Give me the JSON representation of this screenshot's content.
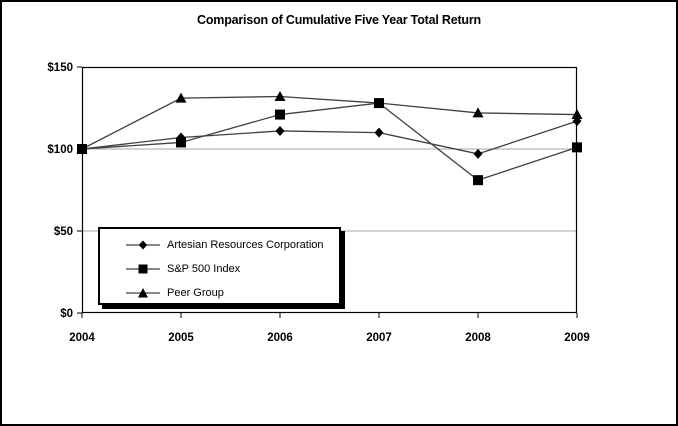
{
  "figure": {
    "background": "#ffffff",
    "border_color": "#000000"
  },
  "chart_data": {
    "type": "line",
    "title": "Comparison of Cumulative Five Year Total Return",
    "categories": [
      "2004",
      "2005",
      "2006",
      "2007",
      "2008",
      "2009"
    ],
    "series": [
      {
        "name": "Artesian Resources Corporation",
        "marker": "diamond",
        "values": [
          100,
          107,
          111,
          110,
          97,
          117
        ]
      },
      {
        "name": "S&P 500 Index",
        "marker": "square",
        "values": [
          100,
          104,
          121,
          128,
          81,
          101
        ]
      },
      {
        "name": "Peer Group",
        "marker": "triangle",
        "values": [
          100,
          131,
          132,
          128,
          122,
          121
        ]
      }
    ],
    "y_ticks": [
      {
        "value": 0,
        "label": "$0"
      },
      {
        "value": 50,
        "label": "$50"
      },
      {
        "value": 100,
        "label": "$100"
      },
      {
        "value": 150,
        "label": "$150"
      }
    ],
    "ylim": [
      0,
      150
    ],
    "grid": "horizontal",
    "legend_position": "inside-lower-left"
  },
  "colors": {
    "gridline": "#a6a6a6",
    "axis": "#000000",
    "series_line": "#404040",
    "marker_fill": "#000000",
    "tick_label": "#000000"
  }
}
